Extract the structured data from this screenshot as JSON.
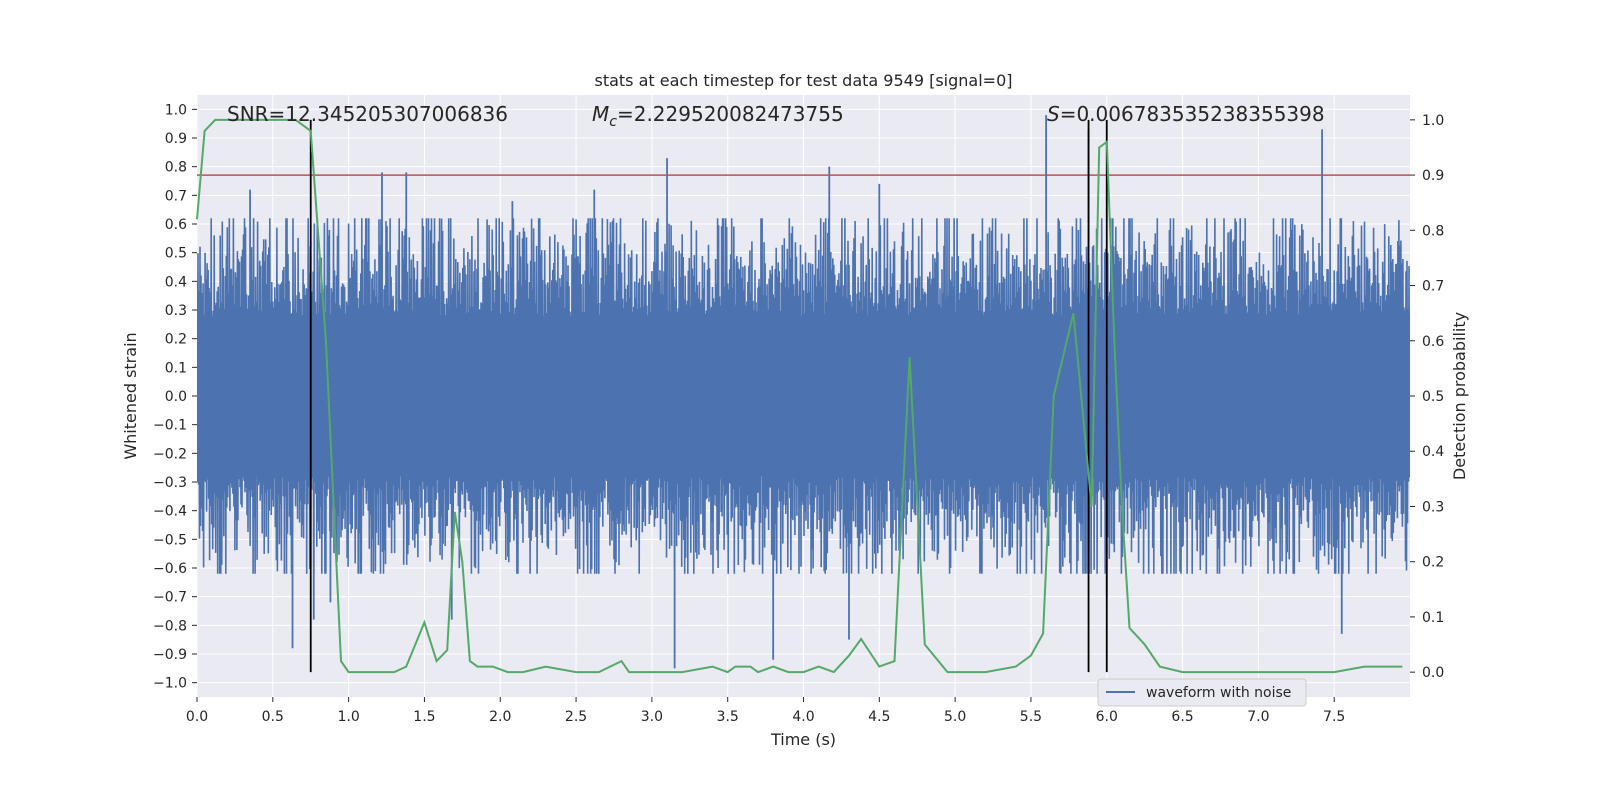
{
  "chart_data": {
    "type": "line",
    "title": "stats at each timestep for test data 9549 [signal=0]",
    "xlabel": "Time (s)",
    "ylabel_left": "Whitened strain",
    "ylabel_right": "Detection probability",
    "xlim": [
      0.0,
      8.0
    ],
    "ylim_left": [
      -1.05,
      1.05
    ],
    "ylim_right": [
      -0.045,
      1.045
    ],
    "x_ticks": [
      0.0,
      0.5,
      1.0,
      1.5,
      2.0,
      2.5,
      3.0,
      3.5,
      4.0,
      4.5,
      5.0,
      5.5,
      6.0,
      6.5,
      7.0,
      7.5
    ],
    "x_tick_labels": [
      "0.0",
      "0.5",
      "1.0",
      "1.5",
      "2.0",
      "2.5",
      "3.0",
      "3.5",
      "4.0",
      "4.5",
      "5.0",
      "5.5",
      "6.0",
      "6.5",
      "7.0",
      "7.5"
    ],
    "y_left_ticks": [
      1.0,
      0.9,
      0.8,
      0.7,
      0.6,
      0.5,
      0.4,
      0.3,
      0.2,
      0.1,
      0.0,
      -0.1,
      -0.2,
      -0.3,
      -0.4,
      -0.5,
      -0.6,
      -0.7,
      -0.8,
      -0.9,
      -1.0
    ],
    "y_left_tick_labels": [
      "1.0",
      "0.9",
      "0.8",
      "0.7",
      "0.6",
      "0.5",
      "0.4",
      "0.3",
      "0.2",
      "0.1",
      "0.0",
      "−0.1",
      "−0.2",
      "−0.3",
      "−0.4",
      "−0.5",
      "−0.6",
      "−0.7",
      "−0.8",
      "−0.9",
      "−1.0"
    ],
    "y_right_ticks": [
      1.0,
      0.9,
      0.8,
      0.7,
      0.6,
      0.5,
      0.4,
      0.3,
      0.2,
      0.1,
      0.0
    ],
    "y_right_tick_labels": [
      "1.0",
      "0.9",
      "0.8",
      "0.7",
      "0.6",
      "0.5",
      "0.4",
      "0.3",
      "0.2",
      "0.1",
      "0.0"
    ],
    "annotations": {
      "snr": "SNR=12.345205307006836",
      "mc_symbol": "M",
      "mc_subscript": "c",
      "mc_value": "=2.229520082473755",
      "s_symbol": "S",
      "s_value": "=0.006783535238355398"
    },
    "threshold": 0.9,
    "vertical_lines": [
      0.75,
      5.88,
      6.0
    ],
    "noise_series": {
      "name": "waveform with noise",
      "color": "#4c72b0",
      "t_start": 0.0,
      "t_end": 8.0,
      "typical_amplitude": 0.42,
      "peaks": [
        {
          "t": 0.35,
          "v": 0.72
        },
        {
          "t": 0.63,
          "v": -0.88
        },
        {
          "t": 0.77,
          "v": -0.78
        },
        {
          "t": 1.22,
          "v": 0.78
        },
        {
          "t": 1.38,
          "v": 0.78
        },
        {
          "t": 2.08,
          "v": 0.68
        },
        {
          "t": 3.1,
          "v": 0.83
        },
        {
          "t": 3.15,
          "v": -0.95
        },
        {
          "t": 3.8,
          "v": -0.92
        },
        {
          "t": 4.17,
          "v": 0.8
        },
        {
          "t": 4.3,
          "v": -0.85
        },
        {
          "t": 5.6,
          "v": 0.98
        },
        {
          "t": 5.88,
          "v": 0.93
        },
        {
          "t": 6.0,
          "v": -0.7
        },
        {
          "t": 7.42,
          "v": 0.93
        },
        {
          "t": 7.55,
          "v": -0.83
        },
        {
          "t": 0.88,
          "v": -0.72
        },
        {
          "t": 1.68,
          "v": -0.78
        },
        {
          "t": 2.62,
          "v": 0.72
        },
        {
          "t": 4.5,
          "v": 0.74
        }
      ]
    },
    "probability_series": {
      "name": "detection probability",
      "color": "#55a868",
      "t": [
        0.0,
        0.05,
        0.12,
        0.3,
        0.5,
        0.65,
        0.75,
        0.85,
        0.95,
        1.0,
        1.1,
        1.2,
        1.3,
        1.38,
        1.5,
        1.58,
        1.65,
        1.7,
        1.75,
        1.8,
        1.85,
        1.95,
        2.05,
        2.15,
        2.3,
        2.5,
        2.65,
        2.8,
        2.85,
        3.0,
        3.2,
        3.4,
        3.5,
        3.55,
        3.65,
        3.7,
        3.8,
        3.9,
        4.0,
        4.1,
        4.2,
        4.3,
        4.38,
        4.5,
        4.6,
        4.7,
        4.8,
        4.95,
        5.0,
        5.2,
        5.4,
        5.5,
        5.58,
        5.65,
        5.78,
        5.9,
        5.95,
        6.0,
        6.05,
        6.1,
        6.15,
        6.25,
        6.35,
        6.5,
        7.0,
        7.5,
        7.7,
        7.95
      ],
      "p": [
        0.82,
        0.98,
        1.0,
        1.0,
        1.0,
        1.0,
        0.98,
        0.6,
        0.02,
        0.0,
        0.0,
        0.0,
        0.0,
        0.01,
        0.09,
        0.02,
        0.04,
        0.29,
        0.2,
        0.02,
        0.01,
        0.01,
        0.0,
        0.0,
        0.01,
        0.0,
        0.0,
        0.02,
        0.0,
        0.0,
        0.0,
        0.01,
        0.0,
        0.01,
        0.01,
        0.0,
        0.01,
        0.0,
        0.0,
        0.01,
        0.0,
        0.03,
        0.06,
        0.01,
        0.02,
        0.57,
        0.05,
        0.0,
        0.0,
        0.0,
        0.01,
        0.03,
        0.07,
        0.5,
        0.65,
        0.3,
        0.95,
        0.96,
        0.6,
        0.3,
        0.08,
        0.05,
        0.01,
        0.0,
        0.0,
        0.0,
        0.01,
        0.01
      ]
    },
    "legend": {
      "entry": "waveform with noise",
      "placement": "lower-right"
    }
  }
}
